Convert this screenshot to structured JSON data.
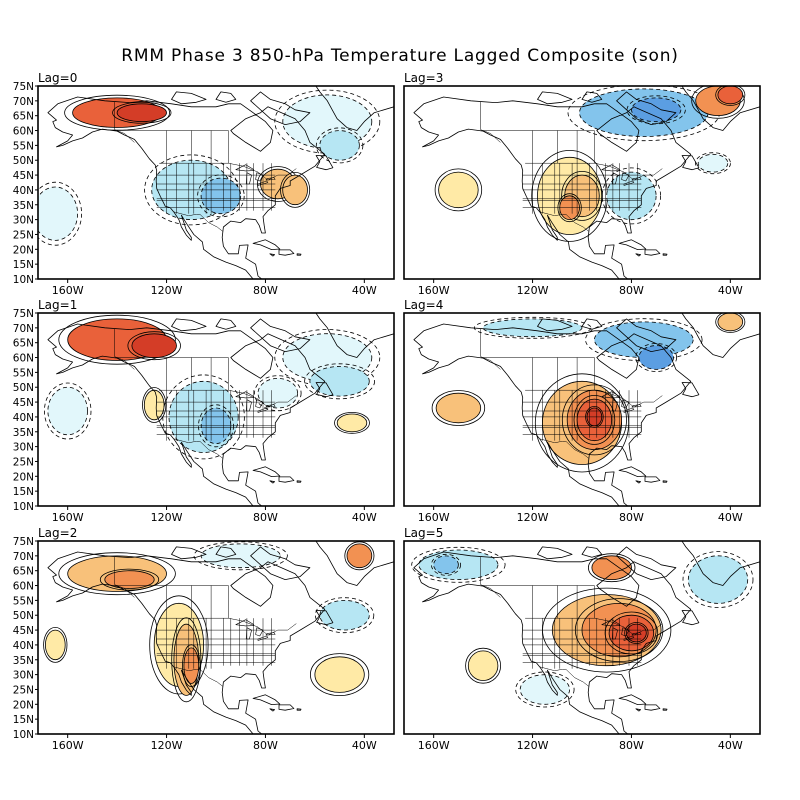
{
  "title": "RMM Phase 3 850-hPa Temperature Lagged Composite (son)",
  "lat_labels": [
    "75N",
    "70N",
    "65N",
    "60N",
    "55N",
    "50N",
    "45N",
    "40N",
    "35N",
    "30N",
    "25N",
    "20N",
    "15N",
    "10N"
  ],
  "lon_labels": [
    "160W",
    "120W",
    "80W",
    "40W"
  ],
  "palette": {
    "warm": [
      "#ffeaa6",
      "#f8c17a",
      "#f29152",
      "#e9613a",
      "#d43d27"
    ],
    "cold": [
      "#e2f7fb",
      "#b6e6f3",
      "#83c4ec",
      "#5b9ee2",
      "#3c78d2"
    ],
    "line": "#000000",
    "coast": "#000000"
  },
  "panels": [
    {
      "lag_label": "Lag=0",
      "anomalies": [
        {
          "lon": -140,
          "lat": 66,
          "rx": 18,
          "ry": 5,
          "level": 4
        },
        {
          "lon": -130,
          "lat": 66,
          "rx": 10,
          "ry": 3,
          "level": 5
        },
        {
          "lon": -110,
          "lat": 40,
          "rx": 16,
          "ry": 10,
          "level": -2
        },
        {
          "lon": -98,
          "lat": 38,
          "rx": 8,
          "ry": 6,
          "level": -3
        },
        {
          "lon": -75,
          "lat": 42,
          "rx": 7,
          "ry": 5,
          "level": 2
        },
        {
          "lon": -68,
          "lat": 40,
          "rx": 5,
          "ry": 5,
          "level": 2
        },
        {
          "lon": -55,
          "lat": 63,
          "rx": 18,
          "ry": 9,
          "level": -1
        },
        {
          "lon": -50,
          "lat": 55,
          "rx": 8,
          "ry": 5,
          "level": -2
        },
        {
          "lon": -165,
          "lat": 32,
          "rx": 9,
          "ry": 9,
          "level": -1
        }
      ]
    },
    {
      "lag_label": "Lag=3",
      "anomalies": [
        {
          "lon": -75,
          "lat": 66,
          "rx": 26,
          "ry": 8,
          "level": -3
        },
        {
          "lon": -70,
          "lat": 67,
          "rx": 10,
          "ry": 4,
          "level": -4
        },
        {
          "lon": -45,
          "lat": 70,
          "rx": 9,
          "ry": 5,
          "level": 3
        },
        {
          "lon": -40,
          "lat": 72,
          "rx": 5,
          "ry": 3,
          "level": 4
        },
        {
          "lon": -105,
          "lat": 38,
          "rx": 13,
          "ry": 13,
          "level": 1
        },
        {
          "lon": -100,
          "lat": 38,
          "rx": 7,
          "ry": 7,
          "level": 2
        },
        {
          "lon": -105,
          "lat": 34,
          "rx": 4,
          "ry": 4,
          "level": 3
        },
        {
          "lon": -150,
          "lat": 40,
          "rx": 8,
          "ry": 6,
          "level": 1
        },
        {
          "lon": -80,
          "lat": 38,
          "rx": 10,
          "ry": 8,
          "level": -2
        },
        {
          "lon": -47,
          "lat": 49,
          "rx": 6,
          "ry": 3,
          "level": -1
        }
      ]
    },
    {
      "lag_label": "Lag=1",
      "anomalies": [
        {
          "lon": -140,
          "lat": 66,
          "rx": 20,
          "ry": 7,
          "level": 4
        },
        {
          "lon": -125,
          "lat": 64,
          "rx": 9,
          "ry": 4,
          "level": 5
        },
        {
          "lon": -105,
          "lat": 40,
          "rx": 14,
          "ry": 12,
          "level": -2
        },
        {
          "lon": -100,
          "lat": 37,
          "rx": 6,
          "ry": 6,
          "level": -3
        },
        {
          "lon": -50,
          "lat": 52,
          "rx": 12,
          "ry": 5,
          "level": -2
        },
        {
          "lon": -55,
          "lat": 60,
          "rx": 18,
          "ry": 8,
          "level": -1
        },
        {
          "lon": -75,
          "lat": 48,
          "rx": 8,
          "ry": 5,
          "level": -1
        },
        {
          "lon": -160,
          "lat": 42,
          "rx": 8,
          "ry": 8,
          "level": -1
        },
        {
          "lon": -125,
          "lat": 44,
          "rx": 4,
          "ry": 5,
          "level": 1
        },
        {
          "lon": -45,
          "lat": 38,
          "rx": 6,
          "ry": 3,
          "level": 1
        }
      ]
    },
    {
      "lag_label": "Lag=4",
      "anomalies": [
        {
          "lon": -100,
          "lat": 38,
          "rx": 16,
          "ry": 14,
          "level": 2
        },
        {
          "lon": -95,
          "lat": 39,
          "rx": 11,
          "ry": 10,
          "level": 3
        },
        {
          "lon": -95,
          "lat": 39,
          "rx": 7,
          "ry": 7,
          "level": 4
        },
        {
          "lon": -95,
          "lat": 40,
          "rx": 3,
          "ry": 3,
          "level": 5
        },
        {
          "lon": -150,
          "lat": 43,
          "rx": 9,
          "ry": 5,
          "level": 2
        },
        {
          "lon": -75,
          "lat": 66,
          "rx": 20,
          "ry": 6,
          "level": -3
        },
        {
          "lon": -70,
          "lat": 60,
          "rx": 7,
          "ry": 4,
          "level": -4
        },
        {
          "lon": -120,
          "lat": 70,
          "rx": 20,
          "ry": 3,
          "level": -2
        },
        {
          "lon": -40,
          "lat": 72,
          "rx": 5,
          "ry": 3,
          "level": 2
        }
      ]
    },
    {
      "lag_label": "Lag=2",
      "anomalies": [
        {
          "lon": -140,
          "lat": 64,
          "rx": 20,
          "ry": 6,
          "level": 2
        },
        {
          "lon": -135,
          "lat": 62,
          "rx": 10,
          "ry": 3,
          "level": 3
        },
        {
          "lon": -112,
          "lat": 35,
          "rx": 5,
          "ry": 12,
          "level": 2
        },
        {
          "lon": -110,
          "lat": 33,
          "rx": 3,
          "ry": 6,
          "level": 3
        },
        {
          "lon": -115,
          "lat": 40,
          "rx": 10,
          "ry": 14,
          "level": 1
        },
        {
          "lon": -48,
          "lat": 50,
          "rx": 10,
          "ry": 5,
          "level": -2
        },
        {
          "lon": -90,
          "lat": 70,
          "rx": 16,
          "ry": 4,
          "level": -1
        },
        {
          "lon": -42,
          "lat": 70,
          "rx": 5,
          "ry": 4,
          "level": 3
        },
        {
          "lon": -50,
          "lat": 30,
          "rx": 10,
          "ry": 6,
          "level": 1
        },
        {
          "lon": -165,
          "lat": 40,
          "rx": 4,
          "ry": 5,
          "level": 1
        }
      ]
    },
    {
      "lag_label": "Lag=5",
      "anomalies": [
        {
          "lon": -90,
          "lat": 45,
          "rx": 22,
          "ry": 12,
          "level": 2
        },
        {
          "lon": -85,
          "lat": 45,
          "rx": 15,
          "ry": 9,
          "level": 3
        },
        {
          "lon": -80,
          "lat": 44,
          "rx": 9,
          "ry": 6,
          "level": 4
        },
        {
          "lon": -78,
          "lat": 44,
          "rx": 4,
          "ry": 3,
          "level": 5
        },
        {
          "lon": -88,
          "lat": 66,
          "rx": 8,
          "ry": 4,
          "level": 3
        },
        {
          "lon": -150,
          "lat": 67,
          "rx": 16,
          "ry": 5,
          "level": -2
        },
        {
          "lon": -155,
          "lat": 67,
          "rx": 5,
          "ry": 3,
          "level": -3
        },
        {
          "lon": -45,
          "lat": 62,
          "rx": 12,
          "ry": 8,
          "level": -2
        },
        {
          "lon": -140,
          "lat": 33,
          "rx": 6,
          "ry": 5,
          "level": 1
        },
        {
          "lon": -115,
          "lat": 25,
          "rx": 10,
          "ry": 5,
          "level": -1
        }
      ]
    }
  ]
}
